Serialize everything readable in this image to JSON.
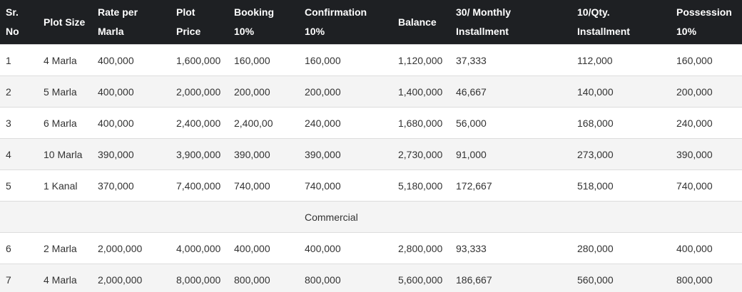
{
  "table": {
    "header": [
      [
        "Sr.",
        "No"
      ],
      [
        "Plot Size"
      ],
      [
        "Rate per",
        "Marla"
      ],
      [
        "Plot",
        "Price"
      ],
      [
        "Booking",
        "10%"
      ],
      [
        "Confirmation",
        "10%"
      ],
      [
        "Balance"
      ],
      [
        "30/ Monthly",
        "Installment"
      ],
      [
        "10/Qty.",
        "Installment"
      ],
      [
        "Possession",
        "10%"
      ]
    ],
    "rows": [
      [
        "1",
        "4 Marla",
        "400,000",
        "1,600,000",
        "160,000",
        "160,000",
        "1,120,000",
        "37,333",
        "112,000",
        "160,000"
      ],
      [
        "2",
        "5 Marla",
        "400,000",
        "2,000,000",
        "200,000",
        "200,000",
        "1,400,000",
        "46,667",
        "140,000",
        "200,000"
      ],
      [
        "3",
        "6 Marla",
        "400,000",
        "2,400,000",
        "2,400,00",
        "240,000",
        "1,680,000",
        "56,000",
        "168,000",
        "240,000"
      ],
      [
        "4",
        "10 Marla",
        "390,000",
        "3,900,000",
        "390,000",
        "390,000",
        "2,730,000",
        "91,000",
        "273,000",
        "390,000"
      ],
      [
        "5",
        "1 Kanal",
        "370,000",
        "7,400,000",
        "740,000",
        "740,000",
        "5,180,000",
        "172,667",
        "518,000",
        "740,000"
      ],
      {
        "section": "Commercial"
      },
      [
        "6",
        "2 Marla",
        "2,000,000",
        "4,000,000",
        "400,000",
        "400,000",
        "2,800,000",
        "93,333",
        "280,000",
        "400,000"
      ],
      [
        "7",
        "4 Marla",
        "2,000,000",
        "8,000,000",
        "800,000",
        "800,000",
        "5,600,000",
        "186,667",
        "560,000",
        "800,000"
      ]
    ]
  }
}
